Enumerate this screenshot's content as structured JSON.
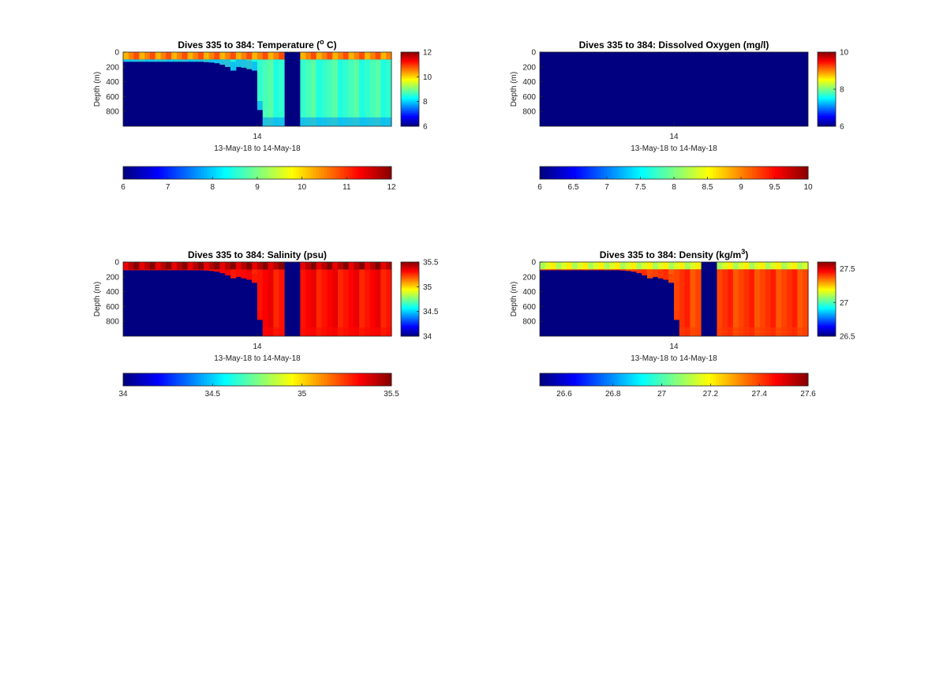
{
  "colormap": "jet",
  "panels": [
    {
      "id": "temperature",
      "title": "Dives 335 to 384: Temperature (",
      "title_sup": "o",
      "title_end": " C)",
      "cbar_ticks": [
        "12",
        "10",
        "8",
        "6"
      ],
      "hbar_ticks": [
        "6",
        "7",
        "8",
        "9",
        "10",
        "11",
        "12"
      ]
    },
    {
      "id": "oxygen",
      "title": "Dives 335 to 384: Dissolved Oxygen (mg/l)",
      "title_sup": "",
      "title_end": "",
      "cbar_ticks": [
        "10",
        "8",
        "6"
      ],
      "hbar_ticks": [
        "6",
        "6.5",
        "7",
        "7.5",
        "8",
        "8.5",
        "9",
        "9.5",
        "10"
      ]
    },
    {
      "id": "salinity",
      "title": "Dives 335 to 384: Salinity (psu)",
      "title_sup": "",
      "title_end": "",
      "cbar_ticks": [
        "35.5",
        "35",
        "34.5",
        "34"
      ],
      "hbar_ticks": [
        "34",
        "34.5",
        "35",
        "35.5"
      ]
    },
    {
      "id": "density",
      "title": "Dives 335 to 384: Density (kg/m",
      "title_sup": "3",
      "title_end": ")",
      "cbar_ticks": [
        "27.5",
        "27",
        "26.5"
      ],
      "hbar_ticks": [
        "26.6",
        "26.8",
        "27",
        "27.2",
        "27.4",
        "27.6"
      ]
    }
  ],
  "chart_data": [
    {
      "type": "heatmap",
      "title": "Dives 335 to 384: Temperature (o C)",
      "ylabel": "Depth (m)",
      "xlabel": "13-May-18 to 14-May-18",
      "x_ticks": [
        "14"
      ],
      "y_ticks": [
        "0",
        "200",
        "400",
        "600",
        "800"
      ],
      "ylim": [
        0,
        1000
      ],
      "clim": [
        6,
        12
      ],
      "colorbar_ticks": [
        6,
        8,
        10,
        12
      ],
      "horizontal_colorbar_ticks": [
        6,
        7,
        8,
        9,
        10,
        11,
        12
      ],
      "dives": 50,
      "data_depth_m": [
        130,
        130,
        130,
        130,
        130,
        130,
        130,
        130,
        130,
        130,
        130,
        130,
        130,
        130,
        130,
        135,
        140,
        150,
        170,
        200,
        250,
        200,
        210,
        230,
        250,
        780,
        1000,
        1000,
        1000,
        1000,
        1000,
        1000,
        1000,
        1000,
        1000,
        1000,
        1000,
        1000,
        1000,
        1000,
        1000,
        1000,
        1000,
        1000,
        1000,
        1000,
        1000,
        1000,
        1000,
        1000
      ],
      "surface_value": 10.5,
      "subsurface_value": 8.6,
      "deep_value": 7.6,
      "gap_dives": [
        30,
        31,
        32
      ]
    },
    {
      "type": "heatmap",
      "title": "Dives 335 to 384: Dissolved Oxygen (mg/l)",
      "ylabel": "Depth (m)",
      "xlabel": "13-May-18 to 14-May-18",
      "x_ticks": [
        "14"
      ],
      "y_ticks": [
        "0",
        "200",
        "400",
        "600",
        "800"
      ],
      "ylim": [
        0,
        1000
      ],
      "clim": [
        6,
        10
      ],
      "colorbar_ticks": [
        6,
        8,
        10
      ],
      "horizontal_colorbar_ticks": [
        6,
        6.5,
        7,
        7.5,
        8,
        8.5,
        9,
        9.5,
        10
      ],
      "note": "no data"
    },
    {
      "type": "heatmap",
      "title": "Dives 335 to 384: Salinity (psu)",
      "ylabel": "Depth (m)",
      "xlabel": "13-May-18 to 14-May-18",
      "x_ticks": [
        "14"
      ],
      "y_ticks": [
        "0",
        "200",
        "400",
        "600",
        "800"
      ],
      "ylim": [
        0,
        1000
      ],
      "clim": [
        34,
        35.5
      ],
      "colorbar_ticks": [
        34,
        34.5,
        35,
        35.5
      ],
      "horizontal_colorbar_ticks": [
        34,
        34.5,
        35,
        35.5
      ],
      "dives": 50,
      "data_depth_m": [
        110,
        110,
        110,
        110,
        110,
        110,
        110,
        110,
        110,
        110,
        110,
        110,
        110,
        110,
        110,
        115,
        120,
        130,
        150,
        180,
        220,
        200,
        220,
        240,
        280,
        780,
        1000,
        1000,
        1000,
        1000,
        1000,
        1000,
        1000,
        1000,
        1000,
        1000,
        1000,
        1000,
        1000,
        1000,
        1000,
        1000,
        1000,
        1000,
        1000,
        1000,
        1000,
        1000,
        1000,
        1000
      ],
      "surface_value": 35.42,
      "deep_value": 35.3,
      "gap_dives": [
        30,
        31,
        32
      ]
    },
    {
      "type": "heatmap",
      "title": "Dives 335 to 384: Density (kg/m3)",
      "ylabel": "Depth (m)",
      "xlabel": "13-May-18 to 14-May-18",
      "x_ticks": [
        "14"
      ],
      "y_ticks": [
        "0",
        "200",
        "400",
        "600",
        "800"
      ],
      "ylim": [
        0,
        1000
      ],
      "clim": [
        26.5,
        27.6
      ],
      "colorbar_ticks": [
        26.5,
        27,
        27.5
      ],
      "horizontal_colorbar_ticks": [
        26.6,
        26.8,
        27,
        27.2,
        27.4,
        27.6
      ],
      "dives": 50,
      "data_depth_m": [
        110,
        110,
        110,
        110,
        110,
        110,
        110,
        110,
        110,
        110,
        110,
        110,
        110,
        110,
        110,
        115,
        120,
        130,
        150,
        180,
        220,
        200,
        220,
        240,
        280,
        780,
        1000,
        1000,
        1000,
        1000,
        1000,
        1000,
        1000,
        1000,
        1000,
        1000,
        1000,
        1000,
        1000,
        1000,
        1000,
        1000,
        1000,
        1000,
        1000,
        1000,
        1000,
        1000,
        1000,
        1000
      ],
      "surface_value": 27.15,
      "deep_value": 27.4,
      "gap_dives": [
        30,
        31,
        32
      ]
    }
  ]
}
